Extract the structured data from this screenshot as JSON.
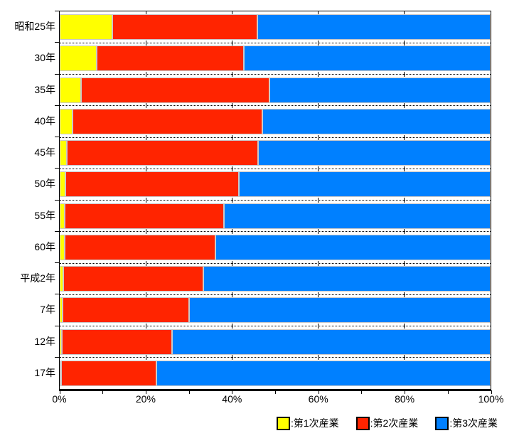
{
  "chart_data": {
    "type": "bar",
    "orientation": "horizontal-stacked",
    "title": "",
    "xlabel": "",
    "ylabel": "",
    "xlim": [
      0,
      100
    ],
    "x_tick_labels": [
      "0%",
      "20%",
      "40%",
      "60%",
      "80%",
      "100%"
    ],
    "x_major_ticks": [
      0,
      20,
      40,
      60,
      80,
      100
    ],
    "x_minor_tick_step": 10,
    "grid": "dotted-row-separators",
    "categories": [
      "昭和25年",
      "30年",
      "35年",
      "40年",
      "45年",
      "50年",
      "55年",
      "60年",
      "平成2年",
      "7年",
      "12年",
      "17年"
    ],
    "series": [
      {
        "name": "第1次産業",
        "color": "#FFFF00",
        "values": [
          12.2,
          8.6,
          5.0,
          2.9,
          1.6,
          1.4,
          1.2,
          1.2,
          0.9,
          0.7,
          0.5,
          0.4
        ]
      },
      {
        "name": "第2次産業",
        "color": "#FF2400",
        "values": [
          33.6,
          34.1,
          43.7,
          44.2,
          44.5,
          40.2,
          37.0,
          34.9,
          32.4,
          29.4,
          25.6,
          22.0
        ]
      },
      {
        "name": "第3次産業",
        "color": "#0080FF",
        "values": [
          54.2,
          57.3,
          51.3,
          52.9,
          53.9,
          58.4,
          61.8,
          63.9,
          66.7,
          69.9,
          73.9,
          77.6
        ]
      }
    ],
    "legend_position": "bottom-right",
    "legend": [
      {
        "label": ":第1次産業",
        "color": "#FFFF00"
      },
      {
        "label": ":第2次産業",
        "color": "#FF2400"
      },
      {
        "label": ":第3次産業",
        "color": "#0080FF"
      }
    ],
    "colors": {
      "bar_border": "#C9C9C9",
      "axis": "#000000",
      "background": "#FFFFFF"
    }
  }
}
